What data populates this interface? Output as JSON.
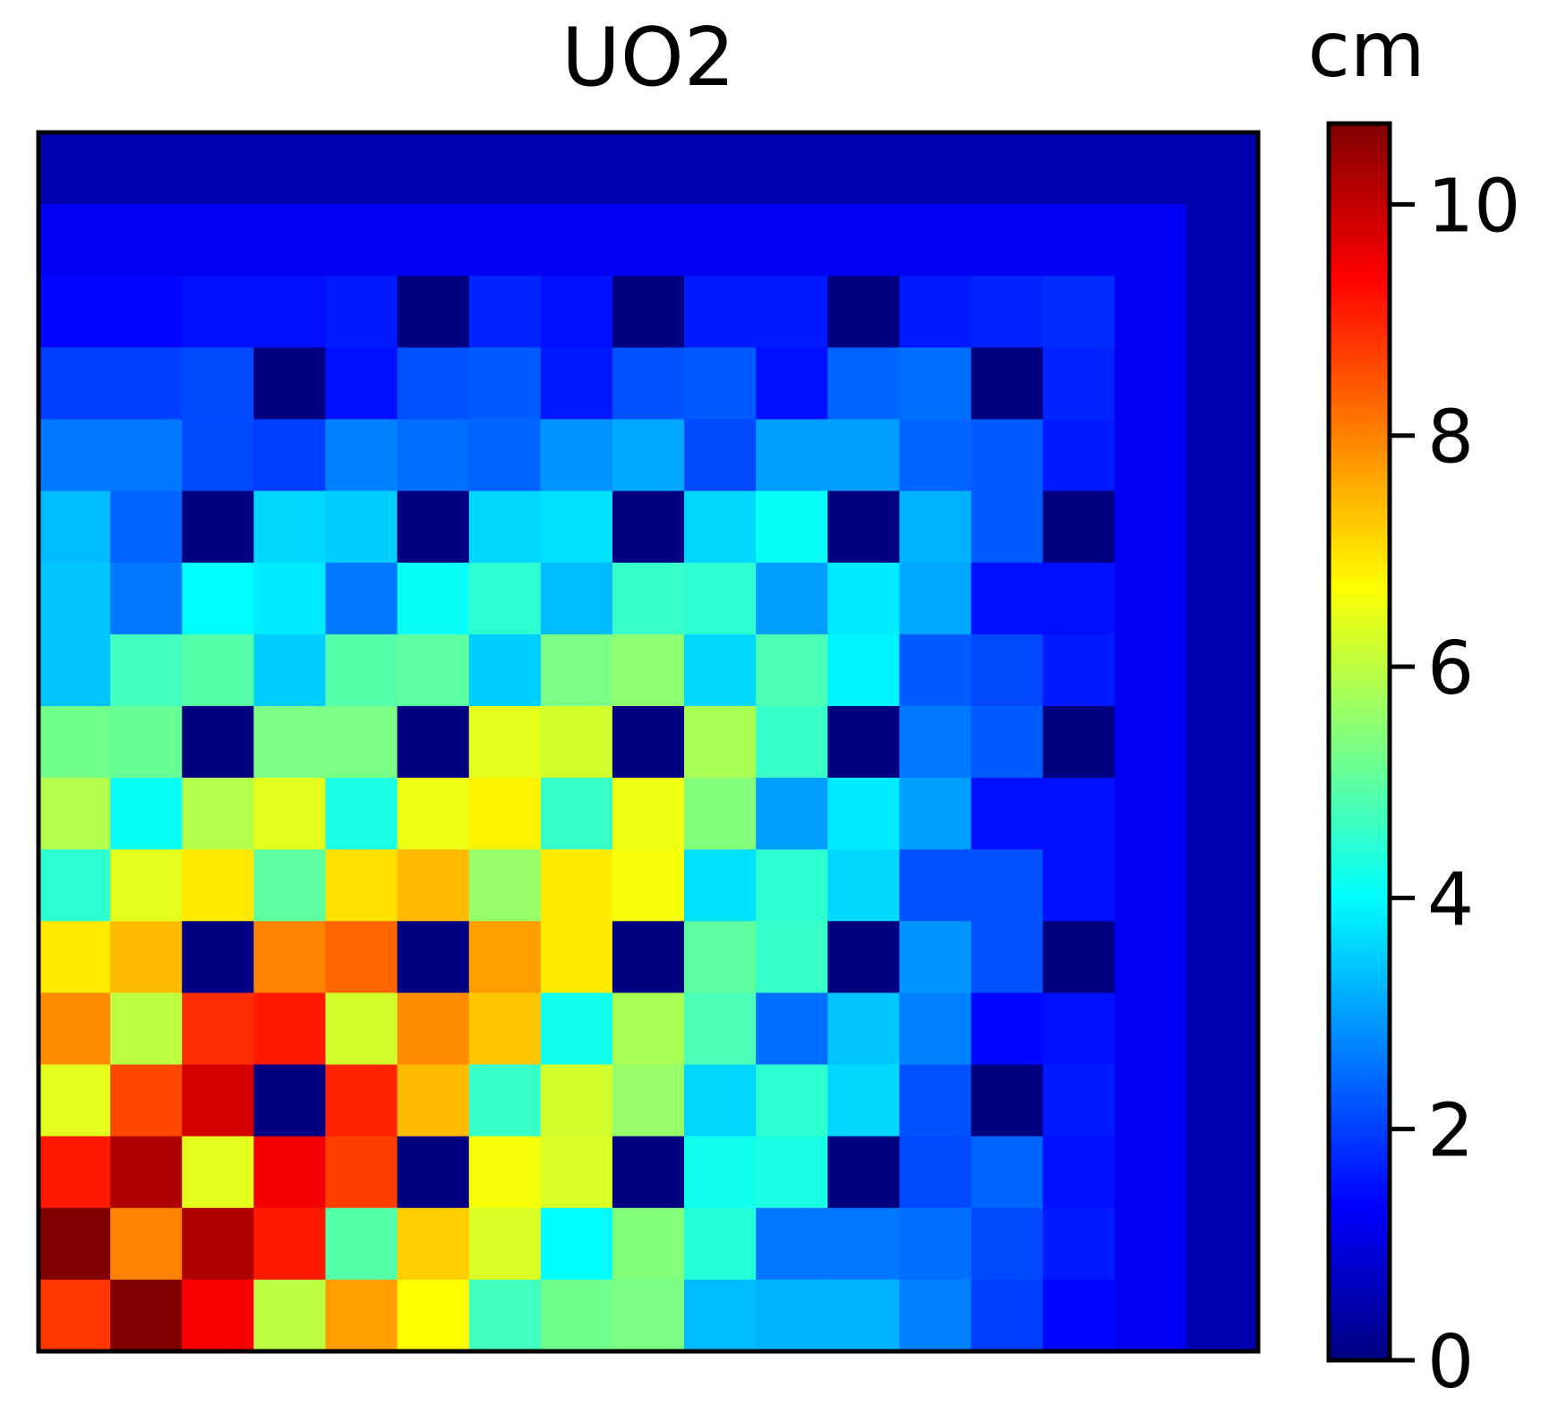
{
  "chart_data": {
    "type": "heatmap",
    "title": "UO2",
    "xlabel": "",
    "ylabel": "",
    "colorbar": {
      "label": "cm",
      "colormap": "jet",
      "vmin": 0,
      "vmax": 10.7,
      "ticks": [
        0,
        2,
        4,
        6,
        8,
        10
      ],
      "tick_labels": [
        "0",
        "2",
        "4",
        "6",
        "8",
        "10"
      ]
    },
    "rows": 17,
    "cols": 17,
    "values": [
      [
        0.5,
        0.5,
        0.5,
        0.5,
        0.5,
        0.5,
        0.5,
        0.5,
        0.5,
        0.5,
        0.5,
        0.5,
        0.5,
        0.5,
        0.5,
        0.5,
        0.5
      ],
      [
        1.2,
        1.2,
        1.2,
        1.2,
        1.2,
        1.2,
        1.2,
        1.2,
        1.2,
        1.2,
        1.2,
        1.2,
        1.2,
        1.2,
        1.2,
        1.2,
        0.5
      ],
      [
        1.4,
        1.4,
        1.5,
        1.5,
        1.6,
        0.0,
        1.7,
        1.5,
        0.0,
        1.6,
        1.6,
        0.0,
        1.6,
        1.7,
        1.8,
        1.2,
        0.5
      ],
      [
        2.0,
        2.0,
        2.1,
        0.0,
        1.5,
        2.2,
        2.3,
        1.6,
        2.2,
        2.3,
        1.5,
        2.4,
        2.5,
        0.0,
        1.7,
        1.2,
        0.5
      ],
      [
        2.6,
        2.6,
        2.1,
        2.0,
        2.7,
        2.5,
        2.4,
        2.9,
        3.1,
        2.1,
        3.0,
        3.0,
        2.4,
        2.3,
        1.6,
        1.2,
        0.5
      ],
      [
        3.3,
        2.4,
        0.0,
        3.6,
        3.5,
        0.0,
        3.6,
        3.7,
        0.0,
        3.6,
        4.1,
        0.0,
        3.2,
        2.3,
        0.0,
        1.2,
        0.5
      ],
      [
        3.4,
        2.6,
        4.0,
        3.8,
        2.6,
        4.1,
        4.5,
        3.3,
        4.6,
        4.5,
        3.0,
        3.8,
        3.1,
        1.5,
        1.5,
        1.2,
        0.5
      ],
      [
        3.4,
        4.7,
        4.9,
        3.5,
        4.9,
        5.0,
        3.5,
        5.3,
        5.5,
        3.6,
        4.8,
        3.9,
        2.3,
        2.1,
        1.6,
        1.2,
        0.5
      ],
      [
        5.2,
        5.1,
        0.0,
        5.3,
        5.3,
        0.0,
        6.4,
        6.2,
        0.0,
        5.8,
        4.6,
        0.0,
        2.6,
        2.3,
        0.0,
        1.2,
        0.5
      ],
      [
        5.9,
        4.1,
        5.9,
        6.4,
        4.3,
        6.5,
        6.8,
        4.6,
        6.5,
        5.4,
        3.0,
        3.8,
        3.0,
        1.5,
        1.5,
        1.2,
        0.5
      ],
      [
        4.5,
        6.4,
        6.9,
        5.0,
        7.0,
        7.4,
        5.6,
        6.9,
        6.6,
        3.7,
        4.5,
        3.6,
        2.2,
        2.2,
        1.5,
        1.2,
        0.5
      ],
      [
        6.9,
        7.4,
        0.0,
        8.0,
        8.3,
        0.0,
        7.7,
        6.9,
        0.0,
        5.0,
        4.6,
        0.0,
        2.9,
        2.2,
        0.0,
        1.2,
        0.5
      ],
      [
        7.9,
        6.0,
        8.9,
        9.1,
        6.2,
        7.9,
        7.3,
        4.2,
        5.8,
        4.8,
        2.5,
        3.4,
        2.7,
        1.4,
        1.5,
        1.2,
        0.5
      ],
      [
        6.4,
        8.6,
        9.8,
        0.0,
        9.0,
        7.4,
        4.6,
        6.2,
        5.6,
        3.6,
        4.5,
        3.6,
        2.2,
        0.0,
        1.6,
        1.2,
        0.5
      ],
      [
        9.1,
        10.2,
        6.4,
        9.5,
        8.7,
        0.0,
        6.6,
        6.3,
        0.0,
        4.2,
        4.3,
        0.0,
        2.1,
        2.4,
        1.5,
        1.2,
        0.5
      ],
      [
        10.7,
        8.0,
        10.2,
        9.1,
        4.9,
        7.2,
        6.3,
        4.0,
        5.4,
        4.4,
        2.6,
        2.6,
        2.5,
        2.1,
        1.6,
        1.2,
        0.5
      ],
      [
        8.8,
        10.7,
        9.4,
        6.0,
        7.7,
        6.7,
        4.7,
        5.2,
        5.3,
        3.3,
        3.2,
        3.2,
        2.7,
        2.0,
        1.4,
        1.2,
        0.5
      ]
    ]
  }
}
